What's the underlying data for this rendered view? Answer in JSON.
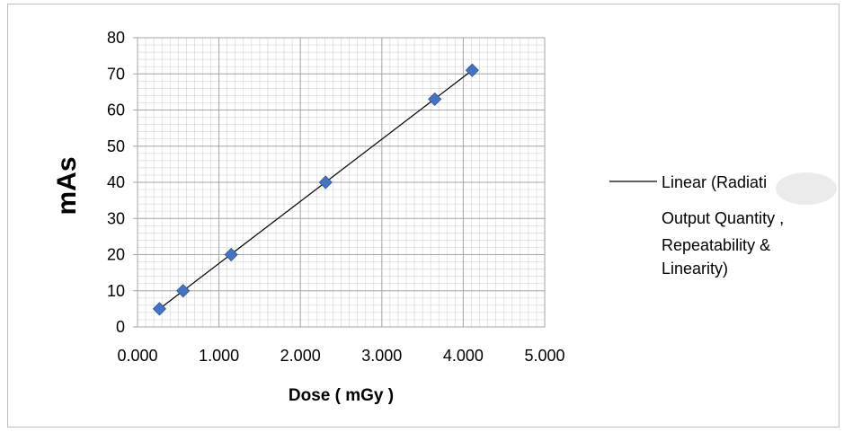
{
  "chart_data": {
    "type": "scatter",
    "xlabel": "Dose ( mGy )",
    "ylabel": "mAs",
    "xlim": [
      0,
      5
    ],
    "ylim": [
      0,
      80
    ],
    "x_ticks": [
      "0.000",
      "1.000",
      "2.000",
      "3.000",
      "4.000",
      "5.000"
    ],
    "y_ticks": [
      "0",
      "10",
      "20",
      "30",
      "40",
      "50",
      "60",
      "70",
      "80"
    ],
    "grid": "on",
    "series": [
      {
        "marker": "diamond",
        "color": "#4472c4",
        "points": [
          {
            "x": 0.27,
            "y": 5
          },
          {
            "x": 0.56,
            "y": 10
          },
          {
            "x": 1.15,
            "y": 20
          },
          {
            "x": 2.31,
            "y": 40
          },
          {
            "x": 3.65,
            "y": 63
          },
          {
            "x": 4.11,
            "y": 71
          }
        ]
      }
    ],
    "trendline": {
      "type": "linear",
      "color": "#000000",
      "from": {
        "x": 0.27,
        "y": 5
      },
      "to": {
        "x": 4.11,
        "y": 71
      }
    },
    "legend": {
      "placement": "right",
      "lines": [
        "Linear (Radiati",
        "Output Quantity ,",
        "Repeatability &",
        "Linearity)"
      ]
    }
  }
}
